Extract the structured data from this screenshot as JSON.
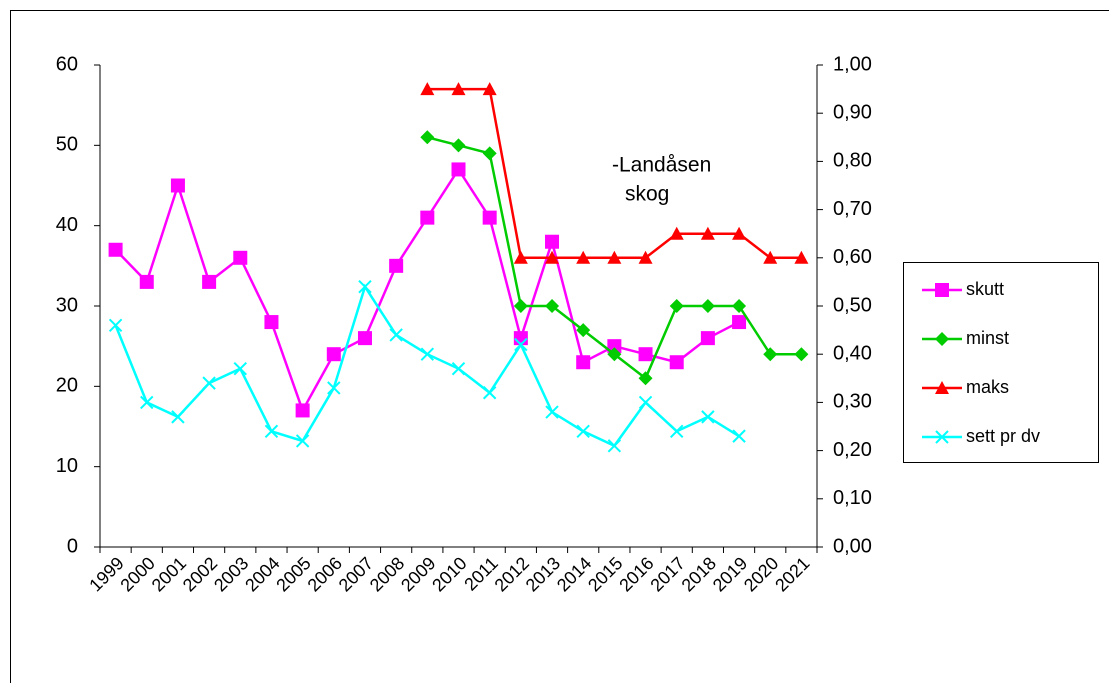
{
  "chart_data": {
    "type": "line",
    "annotation": [
      "-Landåsen",
      "skog"
    ],
    "categories": [
      "1999",
      "2000",
      "2001",
      "2002",
      "2003",
      "2004",
      "2005",
      "2006",
      "2007",
      "2008",
      "2009",
      "2010",
      "2011",
      "2012",
      "2013",
      "2014",
      "2015",
      "2016",
      "2017",
      "2018",
      "2019",
      "2020",
      "2021"
    ],
    "series": [
      {
        "name": "skutt",
        "color": "#ff00ff",
        "marker": "square",
        "values": [
          37,
          33,
          45,
          33,
          36,
          28,
          17,
          24,
          26,
          35,
          41,
          47,
          41,
          26,
          38,
          23,
          25,
          24,
          23,
          26,
          28,
          null,
          null
        ]
      },
      {
        "name": "minst",
        "color": "#00cc00",
        "marker": "diamond",
        "values": [
          null,
          null,
          null,
          null,
          null,
          null,
          null,
          null,
          null,
          null,
          51,
          50,
          49,
          30,
          30,
          27,
          24,
          21,
          30,
          30,
          30,
          24,
          24
        ]
      },
      {
        "name": "maks",
        "color": "#ff0000",
        "marker": "triangle",
        "values": [
          null,
          null,
          null,
          null,
          null,
          null,
          null,
          null,
          null,
          null,
          57,
          57,
          57,
          36,
          36,
          36,
          36,
          36,
          39,
          39,
          39,
          36,
          36
        ]
      },
      {
        "name": "sett pr dv",
        "color": "#00ffff",
        "marker": "x",
        "axis": "y2",
        "values": [
          0.46,
          0.3,
          0.27,
          0.34,
          0.37,
          0.24,
          0.22,
          0.33,
          0.54,
          0.44,
          0.4,
          0.37,
          0.32,
          0.42,
          0.28,
          0.24,
          0.21,
          0.3,
          0.24,
          0.27,
          0.23,
          null,
          null
        ]
      }
    ],
    "ylim": [
      0,
      60
    ],
    "yticks": [
      0,
      10,
      20,
      30,
      40,
      50,
      60
    ],
    "y2lim": [
      0,
      1
    ],
    "y2ticks": [
      {
        "value": 0,
        "label": "0,00"
      },
      {
        "value": 0.1,
        "label": "0,10"
      },
      {
        "value": 0.2,
        "label": "0,20"
      },
      {
        "value": 0.3,
        "label": "0,30"
      },
      {
        "value": 0.4,
        "label": "0,40"
      },
      {
        "value": 0.5,
        "label": "0,50"
      },
      {
        "value": 0.6,
        "label": "0,60"
      },
      {
        "value": 0.7,
        "label": "0,70"
      },
      {
        "value": 0.8,
        "label": "0,80"
      },
      {
        "value": 0.9,
        "label": "0,90"
      },
      {
        "value": 1,
        "label": "1,00"
      }
    ],
    "grid": false,
    "legend": "right"
  }
}
